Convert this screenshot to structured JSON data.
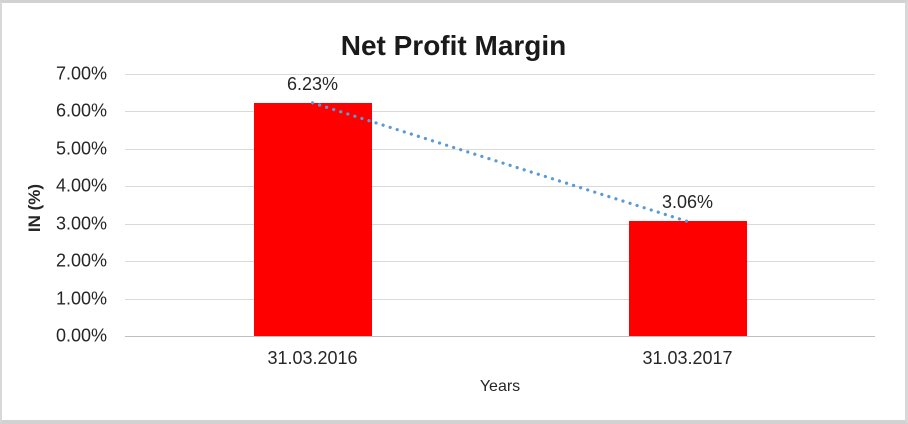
{
  "chart_data": {
    "type": "bar",
    "title": "Net Profit Margin",
    "categories": [
      "31.03.2016",
      "31.03.2017"
    ],
    "values": [
      6.23,
      3.06
    ],
    "data_labels": [
      "6.23%",
      "3.06%"
    ],
    "xlabel": "Years",
    "ylabel": "IN (%)",
    "ylim": [
      0,
      7
    ],
    "ytick_step": 1,
    "ytick_labels": [
      "0.00%",
      "1.00%",
      "2.00%",
      "3.00%",
      "4.00%",
      "5.00%",
      "6.00%",
      "7.00%"
    ],
    "grid": true,
    "legend": "none",
    "bar_color": "#ff0000",
    "gridline_color": "#d9d9d9",
    "axis_line_color": "#bfbfbf",
    "text_color": "#262626",
    "trendline": {
      "type": "linear",
      "style": "dotted",
      "color": "#5b9bd5",
      "from_value": 6.23,
      "to_value": 3.06
    }
  }
}
